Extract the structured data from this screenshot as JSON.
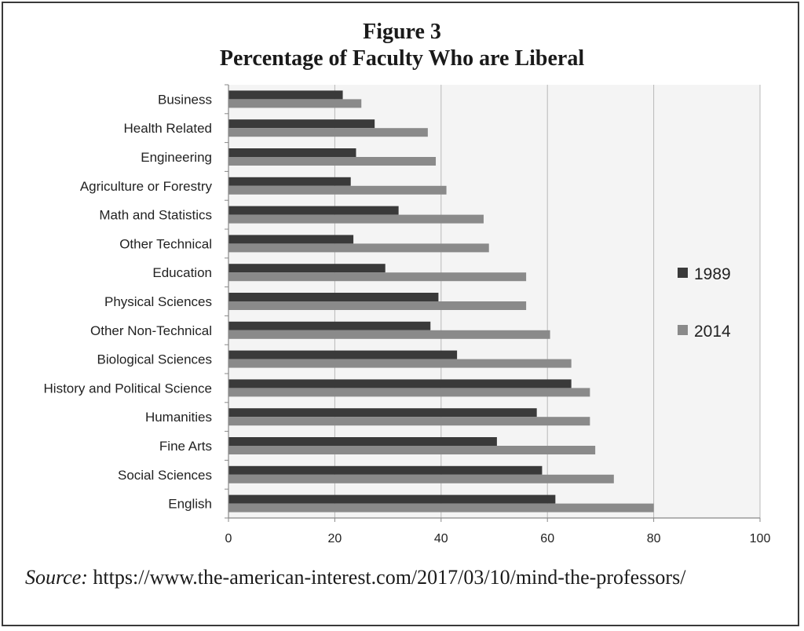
{
  "figure": {
    "number_label": "Figure 3",
    "title": "Percentage of Faculty Who are Liberal"
  },
  "source": {
    "label": "Source:",
    "text": "https://www.the-american-interest.com/2017/03/10/mind-the-professors/"
  },
  "chart_data": {
    "type": "bar",
    "orientation": "horizontal",
    "title": "Percentage of Faculty Who are Liberal",
    "xlabel": "",
    "ylabel": "",
    "xlim": [
      0,
      100
    ],
    "x_ticks": [
      0,
      20,
      40,
      60,
      80,
      100
    ],
    "grid": true,
    "legend_position": "right",
    "categories": [
      "Business",
      "Health Related",
      "Engineering",
      "Agriculture or Forestry",
      "Math and Statistics",
      "Other Technical",
      "Education",
      "Physical Sciences",
      "Other Non-Technical",
      "Biological Sciences",
      "History and Political Science",
      "Humanities",
      "Fine Arts",
      "Social Sciences",
      "English"
    ],
    "series": [
      {
        "name": "1989",
        "color": "#3a3a3a",
        "values": [
          21.5,
          27.5,
          24,
          23,
          32,
          23.5,
          29.5,
          39.5,
          38,
          43,
          64.5,
          58,
          50.5,
          59,
          61.5
        ]
      },
      {
        "name": "2014",
        "color": "#8a8a8a",
        "values": [
          25,
          37.5,
          39,
          41,
          48,
          49,
          56,
          56,
          60.5,
          64.5,
          68,
          68,
          69,
          72.5,
          80
        ]
      }
    ]
  }
}
